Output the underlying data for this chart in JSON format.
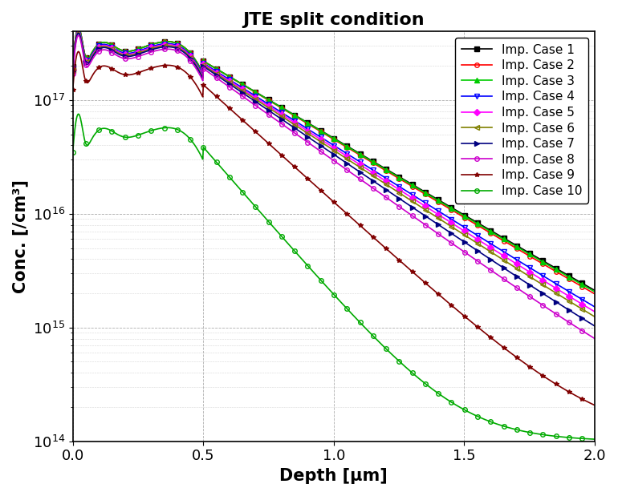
{
  "title": "JTE split condition",
  "xlabel": "Depth [μm]",
  "ylabel": "Conc. [/cm³]",
  "xlim": [
    0.0,
    2.0
  ],
  "ylim": [
    100000000000000.0,
    4e+17
  ],
  "cases": [
    {
      "label": "Imp. Case 1",
      "color": "#000000",
      "marker": "s",
      "marker_fill": true
    },
    {
      "label": "Imp. Case 2",
      "color": "#ff0000",
      "marker": "o",
      "marker_fill": false
    },
    {
      "label": "Imp. Case 3",
      "color": "#00cc00",
      "marker": "^",
      "marker_fill": true
    },
    {
      "label": "Imp. Case 4",
      "color": "#0000ff",
      "marker": "v",
      "marker_fill": false
    },
    {
      "label": "Imp. Case 5",
      "color": "#ff00ff",
      "marker": "D",
      "marker_fill": true
    },
    {
      "label": "Imp. Case 6",
      "color": "#808000",
      "marker": "<",
      "marker_fill": false
    },
    {
      "label": "Imp. Case 7",
      "color": "#000080",
      "marker": ">",
      "marker_fill": true
    },
    {
      "label": "Imp. Case 8",
      "color": "#cc00cc",
      "marker": "o",
      "marker_fill": false
    },
    {
      "label": "Imp. Case 9",
      "color": "#800000",
      "marker": "*",
      "marker_fill": true
    },
    {
      "label": "Imp. Case 10",
      "color": "#00aa00",
      "marker": "o",
      "marker_fill": false
    }
  ],
  "grid_color": "#aaaaaa",
  "background_color": "#ffffff",
  "title_fontsize": 16,
  "label_fontsize": 15,
  "tick_fontsize": 13,
  "legend_fontsize": 11
}
